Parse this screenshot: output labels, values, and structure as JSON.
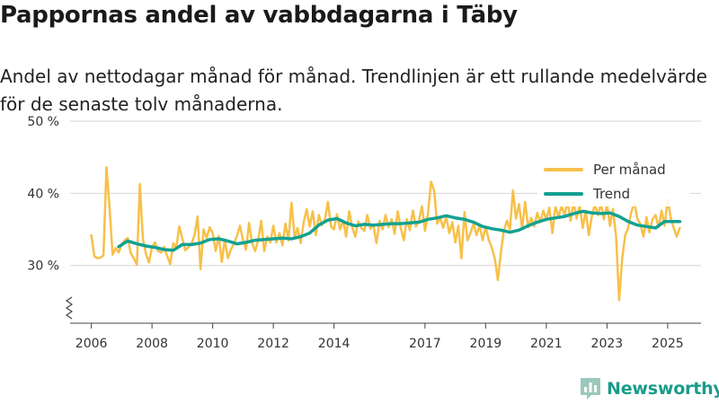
{
  "chart_data": {
    "type": "line",
    "title": "Pappornas andel av vabbdagarna i Täby",
    "subtitle": "Andel av nettodagar månad för månad. Trendlinjen är ett rullande medelvärde för de senaste tolv månaderna.",
    "y_tick_labels": [
      "30 %",
      "40 %",
      "50 %"
    ],
    "y_ticks": [
      30,
      40,
      50
    ],
    "ylim": [
      21,
      51
    ],
    "y_break": true,
    "x_tick_labels": [
      "2006",
      "2008",
      "2010",
      "2012",
      "2014",
      "2017",
      "2019",
      "2021",
      "2023",
      "2025"
    ],
    "x_ticks": [
      2006,
      2008,
      2010,
      2012,
      2014,
      2017,
      2019,
      2021,
      2023,
      2025
    ],
    "xlim": [
      2005.3,
      2026.1
    ],
    "grid": true,
    "legend_position": "top-right",
    "series": [
      {
        "name": "Per månad",
        "color": "#f7c04a",
        "points": [
          [
            2006.0,
            34.2
          ],
          [
            2006.1,
            31.3
          ],
          [
            2006.2,
            31.0
          ],
          [
            2006.3,
            31.1
          ],
          [
            2006.4,
            31.4
          ],
          [
            2006.5,
            43.6
          ],
          [
            2006.6,
            38.0
          ],
          [
            2006.7,
            31.5
          ],
          [
            2006.8,
            32.4
          ],
          [
            2006.9,
            31.8
          ],
          [
            2007.0,
            32.9
          ],
          [
            2007.1,
            33.5
          ],
          [
            2007.2,
            33.8
          ],
          [
            2007.3,
            31.7
          ],
          [
            2007.4,
            31.0
          ],
          [
            2007.5,
            30.1
          ],
          [
            2007.6,
            41.3
          ],
          [
            2007.7,
            33.7
          ],
          [
            2007.8,
            31.6
          ],
          [
            2007.9,
            30.4
          ],
          [
            2008.0,
            32.5
          ],
          [
            2008.1,
            33.2
          ],
          [
            2008.2,
            32.0
          ],
          [
            2008.3,
            31.8
          ],
          [
            2008.4,
            32.6
          ],
          [
            2008.5,
            31.3
          ],
          [
            2008.6,
            30.2
          ],
          [
            2008.7,
            33.1
          ],
          [
            2008.8,
            32.4
          ],
          [
            2008.9,
            35.4
          ],
          [
            2009.0,
            33.7
          ],
          [
            2009.1,
            32.1
          ],
          [
            2009.2,
            32.5
          ],
          [
            2009.3,
            33.0
          ],
          [
            2009.4,
            34.2
          ],
          [
            2009.5,
            36.8
          ],
          [
            2009.6,
            29.5
          ],
          [
            2009.7,
            35.0
          ],
          [
            2009.8,
            33.8
          ],
          [
            2009.9,
            35.3
          ],
          [
            2010.0,
            34.5
          ],
          [
            2010.1,
            32.0
          ],
          [
            2010.2,
            34.1
          ],
          [
            2010.3,
            30.5
          ],
          [
            2010.4,
            33.6
          ],
          [
            2010.5,
            31.0
          ],
          [
            2010.6,
            32.2
          ],
          [
            2010.7,
            33.0
          ],
          [
            2010.8,
            34.1
          ],
          [
            2010.9,
            35.5
          ],
          [
            2011.0,
            33.5
          ],
          [
            2011.1,
            32.2
          ],
          [
            2011.2,
            35.9
          ],
          [
            2011.3,
            33.1
          ],
          [
            2011.4,
            32.0
          ],
          [
            2011.5,
            33.5
          ],
          [
            2011.6,
            36.2
          ],
          [
            2011.7,
            32.0
          ],
          [
            2011.8,
            34.0
          ],
          [
            2011.9,
            33.2
          ],
          [
            2012.0,
            35.5
          ],
          [
            2012.1,
            33.2
          ],
          [
            2012.2,
            34.5
          ],
          [
            2012.3,
            32.8
          ],
          [
            2012.4,
            35.8
          ],
          [
            2012.5,
            33.5
          ],
          [
            2012.6,
            38.7
          ],
          [
            2012.7,
            33.8
          ],
          [
            2012.8,
            35.2
          ],
          [
            2012.9,
            33.1
          ],
          [
            2013.0,
            36.0
          ],
          [
            2013.1,
            37.8
          ],
          [
            2013.2,
            35.4
          ],
          [
            2013.3,
            37.5
          ],
          [
            2013.4,
            34.2
          ],
          [
            2013.5,
            37.0
          ],
          [
            2013.6,
            35.6
          ],
          [
            2013.7,
            36.4
          ],
          [
            2013.8,
            38.8
          ],
          [
            2013.9,
            35.4
          ],
          [
            2014.0,
            35.0
          ],
          [
            2014.1,
            37.1
          ],
          [
            2014.2,
            35.0
          ],
          [
            2014.3,
            36.2
          ],
          [
            2014.4,
            34.0
          ],
          [
            2014.5,
            37.5
          ],
          [
            2014.6,
            35.3
          ],
          [
            2014.7,
            34.0
          ],
          [
            2014.8,
            36.1
          ],
          [
            2014.9,
            35.2
          ],
          [
            2015.0,
            34.8
          ],
          [
            2015.1,
            37.0
          ],
          [
            2015.2,
            35.1
          ],
          [
            2015.3,
            35.6
          ],
          [
            2015.4,
            33.1
          ],
          [
            2015.5,
            36.2
          ],
          [
            2015.6,
            35.0
          ],
          [
            2015.7,
            37.0
          ],
          [
            2015.8,
            35.3
          ],
          [
            2015.9,
            36.4
          ],
          [
            2016.0,
            34.4
          ],
          [
            2016.1,
            37.5
          ],
          [
            2016.2,
            35.2
          ],
          [
            2016.3,
            33.5
          ],
          [
            2016.4,
            36.4
          ],
          [
            2016.5,
            34.9
          ],
          [
            2016.6,
            37.6
          ],
          [
            2016.7,
            35.4
          ],
          [
            2016.8,
            36.2
          ],
          [
            2016.9,
            38.2
          ],
          [
            2017.0,
            34.8
          ],
          [
            2017.1,
            37.2
          ],
          [
            2017.2,
            41.6
          ],
          [
            2017.3,
            40.4
          ],
          [
            2017.4,
            35.8
          ],
          [
            2017.5,
            36.6
          ],
          [
            2017.6,
            35.2
          ],
          [
            2017.7,
            36.8
          ],
          [
            2017.8,
            34.5
          ],
          [
            2017.9,
            36.0
          ],
          [
            2018.0,
            33.2
          ],
          [
            2018.1,
            35.5
          ],
          [
            2018.2,
            31.0
          ],
          [
            2018.3,
            37.4
          ],
          [
            2018.4,
            33.5
          ],
          [
            2018.5,
            34.5
          ],
          [
            2018.6,
            35.8
          ],
          [
            2018.7,
            34.2
          ],
          [
            2018.8,
            35.6
          ],
          [
            2018.9,
            33.5
          ],
          [
            2019.0,
            35.4
          ],
          [
            2019.1,
            33.6
          ],
          [
            2019.2,
            32.5
          ],
          [
            2019.3,
            31.0
          ],
          [
            2019.4,
            28.0
          ],
          [
            2019.5,
            31.8
          ],
          [
            2019.6,
            34.8
          ],
          [
            2019.7,
            36.2
          ],
          [
            2019.8,
            35.0
          ],
          [
            2019.9,
            40.4
          ],
          [
            2020.0,
            36.5
          ],
          [
            2020.1,
            38.5
          ],
          [
            2020.2,
            35.1
          ],
          [
            2020.3,
            38.8
          ],
          [
            2020.4,
            35.3
          ],
          [
            2020.5,
            36.6
          ],
          [
            2020.6,
            35.4
          ],
          [
            2020.7,
            37.3
          ],
          [
            2020.8,
            36.0
          ],
          [
            2020.9,
            37.6
          ],
          [
            2021.0,
            36.4
          ],
          [
            2021.1,
            38.0
          ],
          [
            2021.2,
            34.5
          ],
          [
            2021.3,
            38.2
          ],
          [
            2021.4,
            36.8
          ],
          [
            2021.5,
            38.2
          ],
          [
            2021.6,
            37.0
          ],
          [
            2021.7,
            38.9
          ],
          [
            2021.8,
            36.2
          ],
          [
            2021.9,
            38.8
          ],
          [
            2022.0,
            36.5
          ],
          [
            2022.1,
            38.4
          ],
          [
            2022.2,
            35.2
          ],
          [
            2022.3,
            37.6
          ],
          [
            2022.4,
            34.2
          ],
          [
            2022.5,
            36.8
          ],
          [
            2022.6,
            38.5
          ],
          [
            2022.7,
            37.0
          ],
          [
            2022.8,
            38.6
          ],
          [
            2022.9,
            36.4
          ],
          [
            2023.0,
            38.5
          ],
          [
            2023.1,
            35.5
          ],
          [
            2023.2,
            37.8
          ],
          [
            2023.3,
            34.0
          ],
          [
            2023.4,
            25.2
          ],
          [
            2023.5,
            31.0
          ],
          [
            2023.6,
            34.2
          ],
          [
            2023.7,
            35.2
          ],
          [
            2023.8,
            37.4
          ],
          [
            2023.9,
            38.8
          ],
          [
            2024.0,
            36.5
          ],
          [
            2024.1,
            35.8
          ],
          [
            2024.2,
            34.0
          ],
          [
            2024.3,
            36.7
          ],
          [
            2024.4,
            34.6
          ],
          [
            2024.5,
            36.4
          ],
          [
            2024.6,
            37.0
          ],
          [
            2024.7,
            35.3
          ],
          [
            2024.8,
            37.6
          ],
          [
            2024.9,
            35.5
          ],
          [
            2025.0,
            39.2
          ],
          [
            2025.1,
            36.6
          ],
          [
            2025.2,
            35.2
          ],
          [
            2025.3,
            34.0
          ],
          [
            2025.4,
            35.2
          ]
        ]
      },
      {
        "name": "Trend",
        "color": "#12a192",
        "points": [
          [
            2006.9,
            32.6
          ],
          [
            2007.2,
            33.4
          ],
          [
            2007.5,
            33.0
          ],
          [
            2007.8,
            32.7
          ],
          [
            2008.1,
            32.5
          ],
          [
            2008.4,
            32.2
          ],
          [
            2008.7,
            32.1
          ],
          [
            2009.0,
            32.9
          ],
          [
            2009.3,
            32.9
          ],
          [
            2009.6,
            33.1
          ],
          [
            2009.9,
            33.6
          ],
          [
            2010.2,
            33.7
          ],
          [
            2010.5,
            33.4
          ],
          [
            2010.8,
            33.0
          ],
          [
            2011.1,
            33.2
          ],
          [
            2011.4,
            33.5
          ],
          [
            2011.7,
            33.6
          ],
          [
            2012.0,
            33.7
          ],
          [
            2012.3,
            33.8
          ],
          [
            2012.6,
            33.7
          ],
          [
            2012.9,
            34.0
          ],
          [
            2013.2,
            34.5
          ],
          [
            2013.5,
            35.6
          ],
          [
            2013.8,
            36.3
          ],
          [
            2014.1,
            36.5
          ],
          [
            2014.4,
            35.9
          ],
          [
            2014.7,
            35.5
          ],
          [
            2015.0,
            35.7
          ],
          [
            2015.3,
            35.6
          ],
          [
            2015.6,
            35.7
          ],
          [
            2015.9,
            35.8
          ],
          [
            2016.2,
            35.8
          ],
          [
            2016.5,
            35.9
          ],
          [
            2016.8,
            36.0
          ],
          [
            2017.1,
            36.4
          ],
          [
            2017.4,
            36.6
          ],
          [
            2017.7,
            36.9
          ],
          [
            2018.0,
            36.6
          ],
          [
            2018.3,
            36.4
          ],
          [
            2018.6,
            36.0
          ],
          [
            2018.9,
            35.4
          ],
          [
            2019.2,
            35.1
          ],
          [
            2019.5,
            34.9
          ],
          [
            2019.8,
            34.6
          ],
          [
            2020.1,
            34.9
          ],
          [
            2020.4,
            35.5
          ],
          [
            2020.7,
            36.0
          ],
          [
            2021.0,
            36.4
          ],
          [
            2021.3,
            36.6
          ],
          [
            2021.6,
            36.8
          ],
          [
            2021.9,
            37.2
          ],
          [
            2022.2,
            37.5
          ],
          [
            2022.5,
            37.3
          ],
          [
            2022.8,
            37.2
          ],
          [
            2023.1,
            37.3
          ],
          [
            2023.4,
            36.8
          ],
          [
            2023.7,
            36.1
          ],
          [
            2024.0,
            35.6
          ],
          [
            2024.3,
            35.4
          ],
          [
            2024.6,
            35.2
          ],
          [
            2024.9,
            36.1
          ],
          [
            2025.2,
            36.1
          ],
          [
            2025.4,
            36.1
          ]
        ]
      }
    ],
    "source_label": "Newsworthy"
  }
}
